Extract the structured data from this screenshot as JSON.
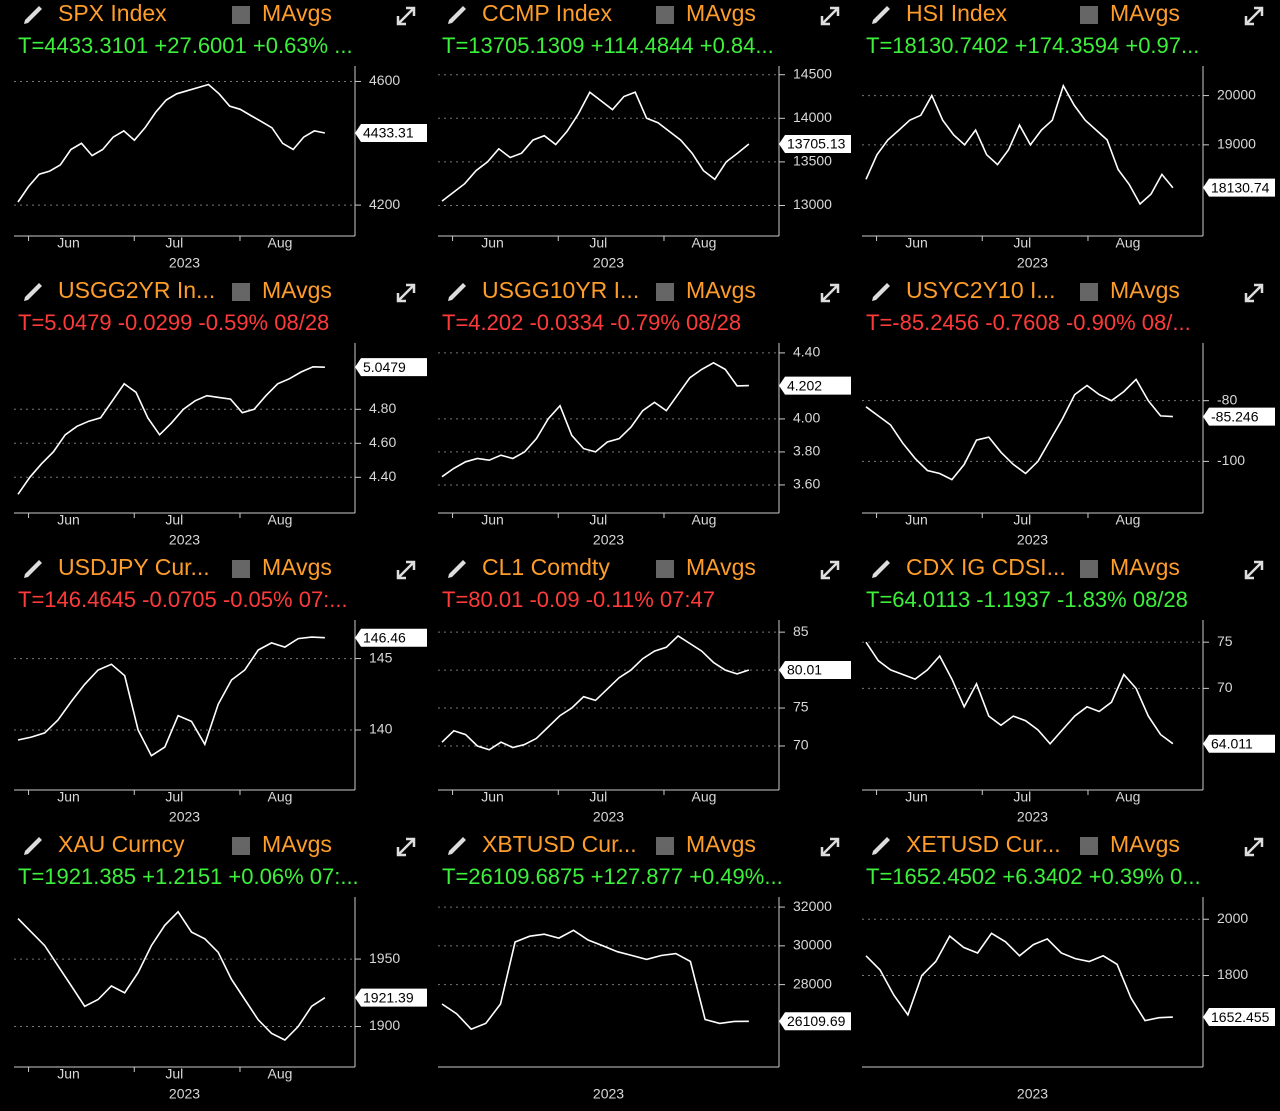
{
  "chart_data": [
    {
      "type": "line",
      "title": "SPX Index",
      "legend": "MAvgs",
      "subtitle": "T=4433.3101 +27.6001 +0.63% ...",
      "subtitle_color": "#3cf03c",
      "color": "#ffffff",
      "values": [
        4210,
        4260,
        4300,
        4310,
        4330,
        4380,
        4400,
        4360,
        4380,
        4420,
        4440,
        4410,
        4450,
        4500,
        4540,
        4560,
        4570,
        4580,
        4590,
        4560,
        4520,
        4510,
        4490,
        4470,
        4450,
        4400,
        4380,
        4420,
        4440,
        4433.31
      ],
      "current": 4433.31,
      "ylim": [
        4100,
        4650
      ],
      "yticks": [
        4200,
        4600
      ],
      "x_labels": [
        "Jun",
        "Jul",
        "Aug"
      ],
      "x_label": "2023"
    },
    {
      "type": "line",
      "title": "CCMP Index",
      "legend": "MAvgs",
      "subtitle": "T=13705.1309 +114.4844 +0.84...",
      "subtitle_color": "#3cf03c",
      "color": "#ffffff",
      "values": [
        13050,
        13150,
        13250,
        13400,
        13500,
        13650,
        13550,
        13600,
        13750,
        13800,
        13700,
        13850,
        14050,
        14300,
        14200,
        14100,
        14250,
        14300,
        14000,
        13950,
        13850,
        13750,
        13600,
        13400,
        13300,
        13500,
        13600,
        13705.13
      ],
      "current": 13705.13,
      "ylim": [
        12650,
        14600
      ],
      "yticks": [
        13000,
        13500,
        14000,
        14500
      ],
      "x_labels": [
        "Jun",
        "Jul",
        "Aug"
      ],
      "x_label": "2023"
    },
    {
      "type": "line",
      "title": "HSI Index",
      "legend": "MAvgs",
      "subtitle": "T=18130.7402 +174.3594 +0.97...",
      "subtitle_color": "#3cf03c",
      "color": "#ffffff",
      "values": [
        18300,
        18800,
        19100,
        19300,
        19500,
        19600,
        20000,
        19500,
        19200,
        19000,
        19300,
        18800,
        18600,
        18900,
        19400,
        19000,
        19300,
        19500,
        20200,
        19800,
        19500,
        19300,
        19100,
        18500,
        18200,
        17800,
        18000,
        18400,
        18130.74
      ],
      "current": 18130.74,
      "ylim": [
        17150,
        20600
      ],
      "yticks": [
        19000,
        20000
      ],
      "x_labels": [
        "Jun",
        "Jul",
        "Aug"
      ],
      "x_label": "2023"
    },
    {
      "type": "line",
      "title": "USGG2YR In...",
      "legend": "MAvgs",
      "subtitle": "T=5.0479 -0.0299 -0.59% 08/28",
      "subtitle_color": "#ff3a3a",
      "color": "#ffffff",
      "values": [
        4.3,
        4.4,
        4.48,
        4.55,
        4.65,
        4.7,
        4.73,
        4.75,
        4.85,
        4.95,
        4.9,
        4.75,
        4.65,
        4.72,
        4.8,
        4.85,
        4.88,
        4.87,
        4.86,
        4.78,
        4.8,
        4.88,
        4.95,
        4.98,
        5.02,
        5.05,
        5.0479
      ],
      "current": 5.0479,
      "ylim": [
        4.19,
        5.19
      ],
      "yticks": [
        {
          "value": 4.4,
          "label": "4.40"
        },
        {
          "value": 4.6,
          "label": "4.60"
        },
        {
          "value": 4.8,
          "label": "4.80"
        }
      ],
      "x_labels": [
        "Jun",
        "Jul",
        "Aug"
      ],
      "x_label": "2023"
    },
    {
      "type": "line",
      "title": "USGG10YR I...",
      "legend": "MAvgs",
      "subtitle": "T=4.202 -0.0334 -0.79% 08/28",
      "subtitle_color": "#ff3a3a",
      "color": "#ffffff",
      "values": [
        3.65,
        3.7,
        3.74,
        3.76,
        3.75,
        3.78,
        3.76,
        3.8,
        3.88,
        4.0,
        4.08,
        3.9,
        3.82,
        3.8,
        3.86,
        3.88,
        3.95,
        4.05,
        4.1,
        4.05,
        4.15,
        4.25,
        4.3,
        4.34,
        4.3,
        4.2,
        4.202
      ],
      "current": 4.202,
      "ylim": [
        3.43,
        4.46
      ],
      "yticks": [
        {
          "value": 3.6,
          "label": "3.60"
        },
        {
          "value": 3.8,
          "label": "3.80"
        },
        {
          "value": 4,
          "label": "4.00"
        },
        {
          "value": 4.4,
          "label": "4.40"
        }
      ],
      "x_labels": [
        "Jun",
        "Jul",
        "Aug"
      ],
      "x_label": "2023"
    },
    {
      "type": "line",
      "title": "USYC2Y10 I...",
      "legend": "MAvgs",
      "subtitle": "T=-85.2456 -0.7608 -0.90% 08/...",
      "subtitle_color": "#ff3a3a",
      "color": "#ffffff",
      "values": [
        -82,
        -85,
        -88,
        -94,
        -99,
        -103,
        -104,
        -106,
        -101,
        -93,
        -92,
        -97,
        -101,
        -104,
        -100,
        -93,
        -86,
        -78,
        -75,
        -78,
        -80,
        -77,
        -73,
        -80,
        -85,
        -85.246
      ],
      "current": -85.246,
      "ylim": [
        -117,
        -61
      ],
      "yticks": [
        -100,
        -80
      ],
      "x_labels": [
        "Jun",
        "Jul",
        "Aug"
      ],
      "x_label": "2023"
    },
    {
      "type": "line",
      "title": "USDJPY Cur...",
      "legend": "MAvgs",
      "subtitle": "T=146.4645 -0.0705 -0.05% 07:...",
      "subtitle_color": "#ff3a3a",
      "color": "#ffffff",
      "values": [
        139.3,
        139.5,
        139.8,
        140.7,
        142.0,
        143.2,
        144.2,
        144.6,
        143.8,
        140.0,
        138.2,
        138.8,
        141.0,
        140.6,
        139.0,
        141.8,
        143.5,
        144.2,
        145.6,
        146.1,
        145.8,
        146.4,
        146.5,
        146.46
      ],
      "current": 146.46,
      "ylim": [
        135.8,
        147.7
      ],
      "yticks": [
        140,
        145
      ],
      "x_labels": [
        "Jun",
        "Jul",
        "Aug"
      ],
      "x_label": "2023"
    },
    {
      "type": "line",
      "title": "CL1 Comdty",
      "legend": "MAvgs",
      "subtitle": "T=80.01 -0.09 -0.11% 07:47",
      "subtitle_color": "#ff3a3a",
      "color": "#ffffff",
      "values": [
        70.5,
        72.0,
        71.5,
        70.0,
        69.5,
        70.5,
        69.8,
        70.2,
        71.0,
        72.5,
        74.0,
        75.0,
        76.5,
        76.0,
        77.5,
        79.0,
        80.0,
        81.5,
        82.5,
        83.0,
        84.5,
        83.5,
        82.5,
        81.0,
        80.0,
        79.5,
        80.01
      ],
      "current": 80.01,
      "ylim": [
        64.2,
        86.6
      ],
      "yticks": [
        70,
        75,
        80,
        85
      ],
      "x_labels": [
        "Jun",
        "Jul",
        "Aug"
      ],
      "x_label": "2023"
    },
    {
      "type": "line",
      "title": "CDX IG CDSI...",
      "legend": "MAvgs",
      "subtitle": "T=64.0113 -1.1937 -1.83% 08/28",
      "subtitle_color": "#3cf03c",
      "color": "#ffffff",
      "values": [
        75.0,
        73.0,
        72.0,
        71.5,
        71.0,
        72.0,
        73.5,
        71.0,
        68.0,
        70.5,
        67.0,
        66.0,
        67.0,
        66.5,
        65.5,
        64.0,
        65.5,
        67.0,
        68.0,
        67.5,
        68.5,
        71.5,
        70.0,
        67.0,
        65.0,
        64.0113
      ],
      "current": 64.011,
      "ylim": [
        59,
        77.4
      ],
      "yticks": [
        70,
        75
      ],
      "x_labels": [
        "Jun",
        "Jul",
        "Aug"
      ],
      "x_label": "2023"
    },
    {
      "type": "line",
      "title": "XAU Curncy",
      "legend": "MAvgs",
      "subtitle": "T=1921.385 +1.2151 +0.06% 07:...",
      "subtitle_color": "#3cf03c",
      "color": "#ffffff",
      "values": [
        1980,
        1970,
        1960,
        1945,
        1930,
        1915,
        1920,
        1930,
        1925,
        1940,
        1960,
        1975,
        1985,
        1970,
        1965,
        1955,
        1935,
        1920,
        1905,
        1895,
        1890,
        1900,
        1915,
        1921.385
      ],
      "current": 1921.39,
      "ylim": [
        1870,
        1996
      ],
      "yticks": [
        1900,
        1950
      ],
      "x_labels": [
        "Jun",
        "Jul",
        "Aug"
      ],
      "x_label": "2023"
    },
    {
      "type": "line",
      "title": "XBTUSD Cur...",
      "legend": "MAvgs",
      "subtitle": "T=26109.6875 +127.877 +0.49%...",
      "subtitle_color": "#3cf03c",
      "color": "#ffffff",
      "values": [
        27000,
        26500,
        25700,
        26000,
        27000,
        30200,
        30500,
        30600,
        30400,
        30800,
        30300,
        30000,
        29700,
        29500,
        29300,
        29500,
        29600,
        29200,
        26200,
        26000,
        26100,
        26109.69
      ],
      "current": 26109.69,
      "ylim": [
        23750,
        32520
      ],
      "yticks": [
        28000,
        30000,
        32000
      ],
      "x_label": "2023"
    },
    {
      "type": "line",
      "title": "XETUSD Cur...",
      "legend": "MAvgs",
      "subtitle": "T=1652.4502 +6.3402 +0.39% 0...",
      "subtitle_color": "#3cf03c",
      "color": "#ffffff",
      "values": [
        1870,
        1820,
        1730,
        1660,
        1800,
        1850,
        1940,
        1900,
        1880,
        1950,
        1920,
        1870,
        1910,
        1930,
        1880,
        1860,
        1850,
        1870,
        1840,
        1720,
        1640,
        1650,
        1652.455
      ],
      "current": 1652.455,
      "ylim": [
        1475,
        2079
      ],
      "yticks": [
        1800,
        2000
      ],
      "x_label": "2023"
    }
  ]
}
